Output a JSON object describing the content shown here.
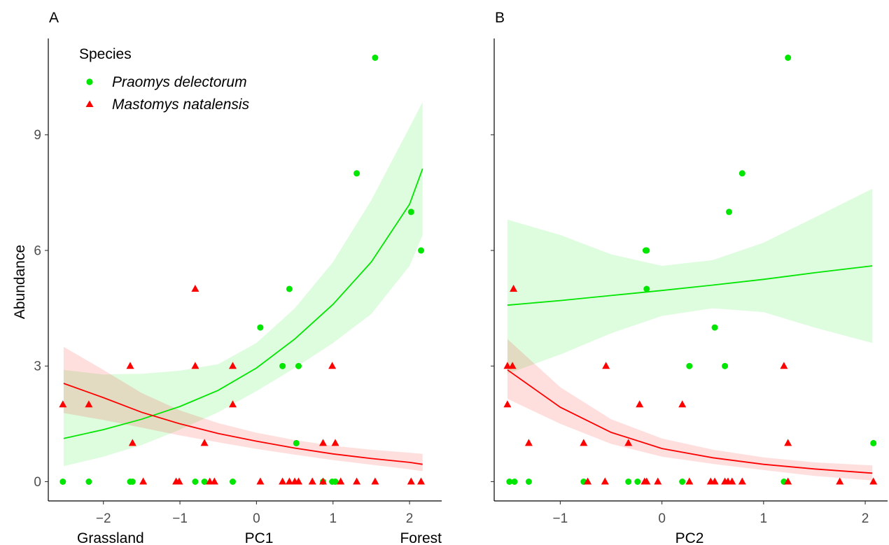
{
  "chart_data": [
    {
      "type": "scatter",
      "panel_label": "A",
      "xlabel": "PC1",
      "x_end_labels": [
        "Grassland",
        "Forest"
      ],
      "ylabel": "Abundance",
      "xlim": [
        -2.72,
        2.42
      ],
      "ylim": [
        -0.5,
        11.5
      ],
      "xticks": [
        -2,
        -1,
        0,
        1,
        2
      ],
      "yticks": [
        0,
        3,
        6,
        9
      ],
      "grid": false,
      "legend": {
        "title": "Species",
        "position": "top-left",
        "entries": [
          {
            "label": "Praomys delectorum",
            "marker": "circle",
            "color": "#00e600"
          },
          {
            "label": "Mastomys natalensis",
            "marker": "triangle",
            "color": "#ff0000"
          }
        ]
      },
      "series": [
        {
          "name": "Praomys delectorum",
          "color": "#00e600",
          "marker": "circle",
          "points": [
            [
              -2.53,
              0
            ],
            [
              -2.19,
              0
            ],
            [
              -1.65,
              0
            ],
            [
              -1.62,
              0
            ],
            [
              -0.8,
              0
            ],
            [
              -0.68,
              0
            ],
            [
              -0.31,
              0
            ],
            [
              0.05,
              4
            ],
            [
              0.34,
              3
            ],
            [
              0.43,
              5
            ],
            [
              0.52,
              1
            ],
            [
              0.55,
              3
            ],
            [
              0.87,
              0
            ],
            [
              0.99,
              0
            ],
            [
              1.03,
              0
            ],
            [
              1.31,
              8
            ],
            [
              1.55,
              11
            ],
            [
              2.02,
              7
            ],
            [
              2.15,
              6
            ]
          ],
          "fit": {
            "x": [
              -2.52,
              -2.0,
              -1.5,
              -1.0,
              -0.5,
              0.0,
              0.5,
              1.0,
              1.5,
              2.0,
              2.17
            ],
            "y": [
              1.12,
              1.35,
              1.62,
              1.95,
              2.37,
              2.95,
              3.7,
              4.6,
              5.7,
              7.2,
              8.12
            ],
            "lower": [
              0.4,
              0.65,
              0.95,
              1.35,
              1.8,
              2.35,
              2.95,
              3.6,
              4.35,
              5.6,
              6.4
            ],
            "upper": [
              2.9,
              2.78,
              2.8,
              2.88,
              3.05,
              3.6,
              4.5,
              5.7,
              7.3,
              9.2,
              9.85
            ]
          }
        },
        {
          "name": "Mastomys natalensis",
          "color": "#ff0000",
          "marker": "triangle",
          "points": [
            [
              -2.53,
              2
            ],
            [
              -2.19,
              2
            ],
            [
              -1.65,
              3
            ],
            [
              -1.62,
              1
            ],
            [
              -1.48,
              0
            ],
            [
              -1.05,
              0
            ],
            [
              -1.01,
              0
            ],
            [
              -0.8,
              5
            ],
            [
              -0.8,
              3
            ],
            [
              -0.68,
              1
            ],
            [
              -0.61,
              0
            ],
            [
              -0.55,
              0
            ],
            [
              -0.31,
              3
            ],
            [
              -0.31,
              2
            ],
            [
              0.05,
              0
            ],
            [
              0.34,
              0
            ],
            [
              0.43,
              0
            ],
            [
              0.5,
              0
            ],
            [
              0.55,
              0
            ],
            [
              0.73,
              0
            ],
            [
              0.87,
              1
            ],
            [
              0.87,
              0
            ],
            [
              0.99,
              3
            ],
            [
              1.03,
              1
            ],
            [
              1.1,
              0
            ],
            [
              1.31,
              0
            ],
            [
              1.55,
              0
            ],
            [
              2.02,
              0
            ],
            [
              2.15,
              0
            ]
          ],
          "fit": {
            "x": [
              -2.52,
              -2.0,
              -1.5,
              -1.0,
              -0.5,
              0.0,
              0.5,
              1.0,
              1.5,
              2.0,
              2.17
            ],
            "y": [
              2.55,
              2.18,
              1.8,
              1.5,
              1.25,
              1.05,
              0.87,
              0.72,
              0.6,
              0.5,
              0.45
            ],
            "lower": [
              1.78,
              1.6,
              1.4,
              1.2,
              1.02,
              0.85,
              0.7,
              0.56,
              0.44,
              0.32,
              0.27
            ],
            "upper": [
              3.5,
              2.9,
              2.3,
              1.85,
              1.52,
              1.27,
              1.08,
              0.93,
              0.83,
              0.75,
              0.72
            ]
          }
        }
      ]
    },
    {
      "type": "scatter",
      "panel_label": "B",
      "xlabel": "PC2",
      "xlim": [
        -1.65,
        2.22
      ],
      "ylim": [
        -0.5,
        11.5
      ],
      "xticks": [
        -1,
        0,
        1,
        2
      ],
      "yticks": [
        0,
        3,
        6,
        9
      ],
      "grid": false,
      "series": [
        {
          "name": "Praomys delectorum",
          "color": "#00e600",
          "marker": "circle",
          "points": [
            [
              -1.5,
              0
            ],
            [
              -1.45,
              0
            ],
            [
              -1.31,
              0
            ],
            [
              -0.77,
              0
            ],
            [
              -0.33,
              0
            ],
            [
              -0.24,
              0
            ],
            [
              -0.16,
              6
            ],
            [
              -0.15,
              6
            ],
            [
              -0.15,
              5
            ],
            [
              0.2,
              0
            ],
            [
              0.27,
              3
            ],
            [
              0.52,
              4
            ],
            [
              0.62,
              3
            ],
            [
              0.66,
              7
            ],
            [
              0.79,
              8
            ],
            [
              1.2,
              0
            ],
            [
              1.24,
              11
            ],
            [
              2.08,
              1
            ]
          ],
          "fit": {
            "x": [
              -1.52,
              -1.0,
              -0.5,
              0.0,
              0.5,
              1.0,
              1.5,
              2.07
            ],
            "y": [
              4.58,
              4.7,
              4.83,
              4.96,
              5.1,
              5.25,
              5.42,
              5.6
            ],
            "lower": [
              2.8,
              3.3,
              3.85,
              4.3,
              4.5,
              4.4,
              4.0,
              3.6
            ],
            "upper": [
              6.8,
              6.4,
              5.9,
              5.6,
              5.75,
              6.2,
              6.85,
              7.6
            ]
          }
        },
        {
          "name": "Mastomys natalensis",
          "color": "#ff0000",
          "marker": "triangle",
          "points": [
            [
              -1.52,
              3
            ],
            [
              -1.52,
              2
            ],
            [
              -1.47,
              3
            ],
            [
              -1.46,
              5
            ],
            [
              -1.31,
              1
            ],
            [
              -0.77,
              1
            ],
            [
              -0.73,
              0
            ],
            [
              -0.56,
              0
            ],
            [
              -0.55,
              3
            ],
            [
              -0.33,
              1
            ],
            [
              -0.22,
              2
            ],
            [
              -0.17,
              0
            ],
            [
              -0.15,
              0
            ],
            [
              -0.04,
              0
            ],
            [
              0.2,
              2
            ],
            [
              0.27,
              0
            ],
            [
              0.48,
              0
            ],
            [
              0.52,
              0
            ],
            [
              0.62,
              0
            ],
            [
              0.65,
              0
            ],
            [
              0.69,
              0
            ],
            [
              0.79,
              0
            ],
            [
              1.2,
              3
            ],
            [
              1.24,
              1
            ],
            [
              1.24,
              0
            ],
            [
              1.75,
              0
            ],
            [
              2.08,
              0
            ]
          ],
          "fit": {
            "x": [
              -1.52,
              -1.0,
              -0.5,
              0.0,
              0.5,
              1.0,
              1.5,
              2.07
            ],
            "y": [
              2.9,
              1.93,
              1.28,
              0.86,
              0.62,
              0.45,
              0.33,
              0.22
            ],
            "lower": [
              2.15,
              1.5,
              0.98,
              0.65,
              0.46,
              0.3,
              0.15,
              0.03
            ],
            "upper": [
              3.7,
              2.45,
              1.62,
              1.12,
              0.83,
              0.63,
              0.5,
              0.42
            ]
          }
        }
      ]
    }
  ]
}
